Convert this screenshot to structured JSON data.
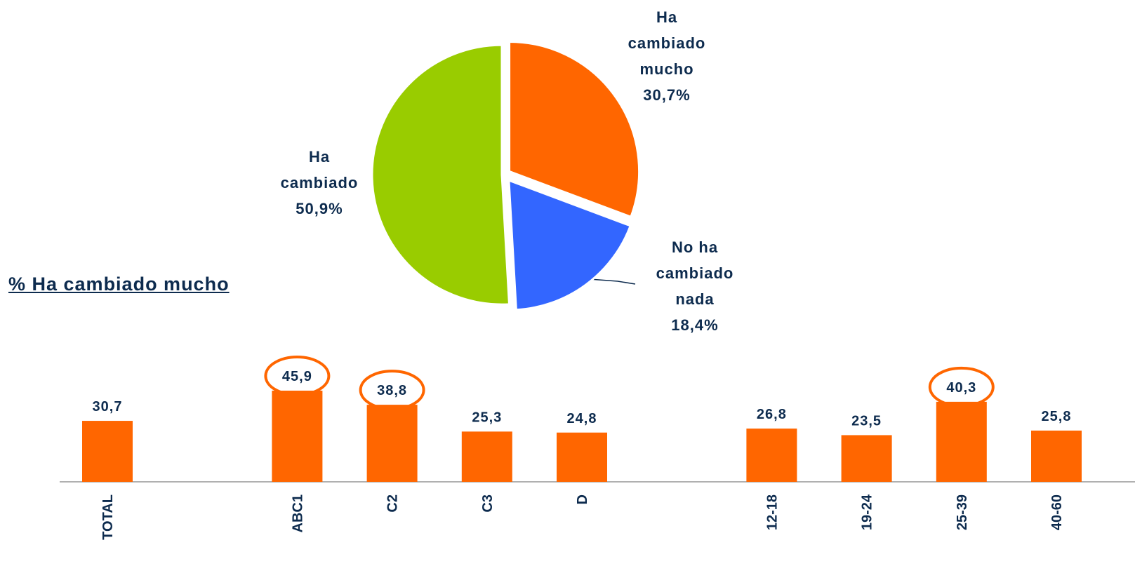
{
  "chart_data": [
    {
      "type": "pie",
      "categories": [
        "Ha cambiado mucho",
        "No ha cambiado nada",
        "Ha cambiado"
      ],
      "values": [
        30.7,
        18.4,
        50.9
      ],
      "value_labels": [
        "30,7%",
        "18,4%",
        "50,9%"
      ],
      "colors": [
        "#ff6600",
        "#3366ff",
        "#99cc00"
      ]
    },
    {
      "type": "bar",
      "subtitle": "% Ha cambiado mucho",
      "categories": [
        "TOTAL",
        "ABC1",
        "C2",
        "C3",
        "D",
        "12-18",
        "19-24",
        "25-39",
        "40-60"
      ],
      "values": [
        30.7,
        45.9,
        38.8,
        25.3,
        24.8,
        26.8,
        23.5,
        40.3,
        25.8
      ],
      "value_labels": [
        "30,7",
        "45,9",
        "38,8",
        "25,3",
        "24,8",
        "26,8",
        "23,5",
        "40,3",
        "25,8"
      ],
      "color": "#ff6600",
      "highlight": [
        1,
        2,
        7
      ]
    }
  ]
}
